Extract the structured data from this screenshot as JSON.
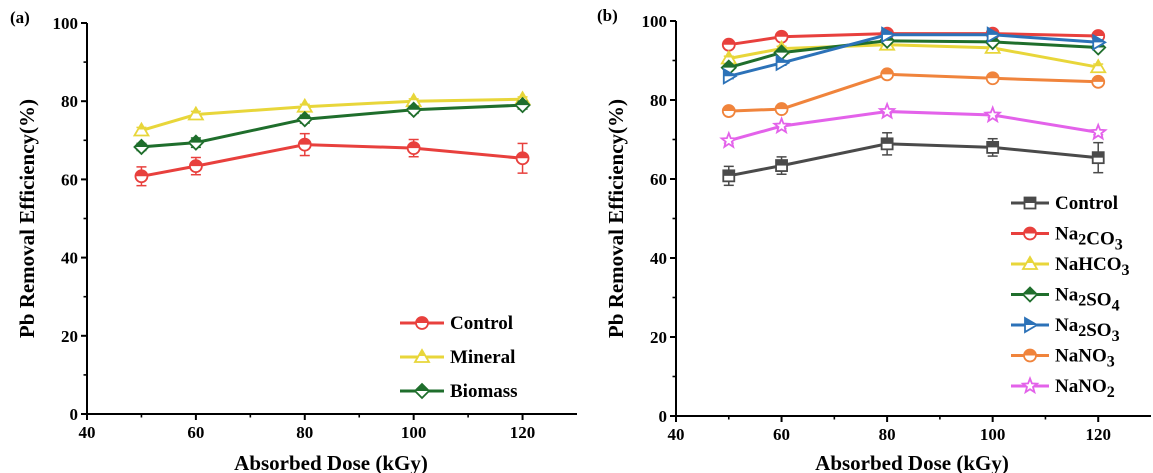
{
  "chart_data": [
    {
      "type": "line",
      "panel_label": "(a)",
      "xlabel": "Absorbed Dose (kGy)",
      "ylabel": "Pb Removal Efficiency(%)",
      "xlim": [
        40,
        130
      ],
      "ylim": [
        0,
        100
      ],
      "x_ticks": [
        40,
        60,
        80,
        100,
        120
      ],
      "y_ticks": [
        0,
        20,
        40,
        60,
        80,
        100
      ],
      "grid": false,
      "legend_position": "bottom-right",
      "x": [
        50,
        60,
        80,
        100,
        120
      ],
      "series": [
        {
          "name": "Control",
          "color": "#e8403d",
          "marker": "circle",
          "values": [
            60.8,
            63.4,
            68.9,
            68.0,
            65.4
          ],
          "errors": [
            2.4,
            2.2,
            2.8,
            2.2,
            3.8
          ]
        },
        {
          "name": "Mineral",
          "color": "#e8d63a",
          "marker": "triangle",
          "values": [
            72.5,
            76.6,
            78.6,
            80.0,
            80.5
          ],
          "errors": [
            0.8,
            0.8,
            0.6,
            0.6,
            0.6
          ]
        },
        {
          "name": "Biomass",
          "color": "#1f6e2c",
          "marker": "diamond",
          "values": [
            68.3,
            69.4,
            75.4,
            77.8,
            79.0
          ],
          "errors": [
            0.9,
            1.2,
            1.0,
            0.9,
            1.0
          ]
        }
      ]
    },
    {
      "type": "line",
      "panel_label": "(b)",
      "xlabel": "Absorbed Dose (kGy)",
      "ylabel": "Pb Removal Efficiency(%)",
      "xlim": [
        40,
        130
      ],
      "ylim": [
        0,
        100
      ],
      "x_ticks": [
        40,
        60,
        80,
        100,
        120
      ],
      "y_ticks": [
        0,
        20,
        40,
        60,
        80,
        100
      ],
      "grid": false,
      "legend_position": "bottom-right",
      "x": [
        50,
        60,
        80,
        100,
        120
      ],
      "series": [
        {
          "name": "Control",
          "color": "#4a4a4a",
          "marker": "square",
          "values": [
            60.8,
            63.4,
            68.9,
            68.0,
            65.4
          ],
          "errors": [
            2.4,
            2.2,
            2.8,
            2.2,
            3.8
          ]
        },
        {
          "name": "Na2CO3",
          "color": "#e8403d",
          "marker": "circle",
          "values": [
            94.0,
            96.0,
            96.8,
            96.8,
            96.2
          ],
          "errors": [
            0.5,
            0.5,
            0.5,
            0.5,
            0.5
          ]
        },
        {
          "name": "NaHCO3",
          "color": "#e8d63a",
          "marker": "triangle",
          "values": [
            90.5,
            93.0,
            94.0,
            93.2,
            88.3
          ],
          "errors": [
            0.6,
            0.6,
            0.6,
            0.6,
            0.8
          ]
        },
        {
          "name": "Na2SO4",
          "color": "#1f6e2c",
          "marker": "diamond",
          "values": [
            88.2,
            92.0,
            95.0,
            94.7,
            93.3
          ],
          "errors": [
            0.6,
            0.6,
            0.6,
            0.6,
            0.6
          ]
        },
        {
          "name": "Na2SO3",
          "color": "#2c72b8",
          "marker": "triangle-right",
          "values": [
            86.0,
            89.4,
            96.5,
            96.5,
            94.6
          ],
          "errors": [
            0.6,
            0.6,
            0.6,
            0.6,
            0.6
          ]
        },
        {
          "name": "NaNO3",
          "color": "#f0843c",
          "marker": "circle-half",
          "values": [
            77.2,
            77.7,
            86.5,
            85.5,
            84.6
          ],
          "errors": [
            0.6,
            0.6,
            0.6,
            0.6,
            0.6
          ]
        },
        {
          "name": "NaNO2",
          "color": "#e362ea",
          "marker": "star",
          "values": [
            69.7,
            73.4,
            77.1,
            76.2,
            71.8
          ],
          "errors": [
            0.6,
            0.6,
            0.6,
            0.6,
            0.6
          ]
        }
      ]
    }
  ]
}
